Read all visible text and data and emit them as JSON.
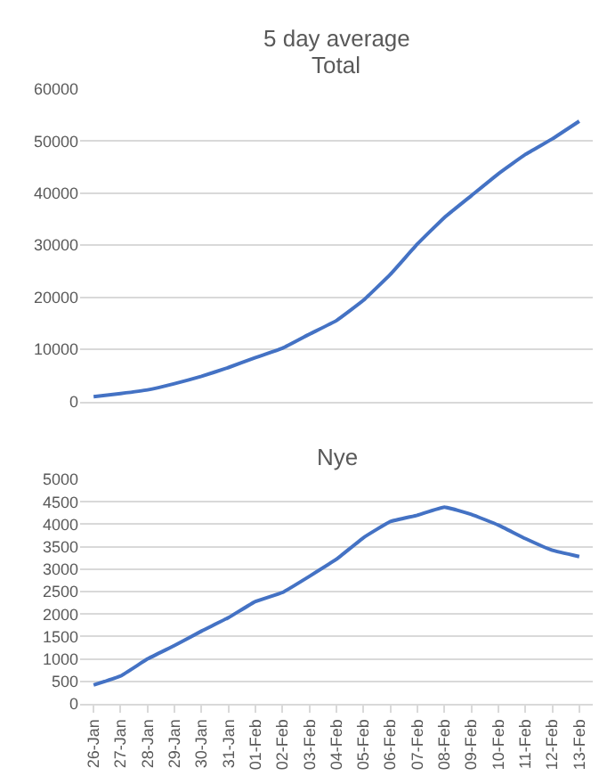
{
  "chart_data": [
    {
      "type": "line",
      "title": "5 day average",
      "subtitle": "Total",
      "categories": [
        null,
        null,
        null,
        null,
        null,
        null,
        null,
        null,
        null,
        null,
        null,
        null,
        null,
        null,
        null,
        null,
        null,
        null,
        null
      ],
      "series": [
        {
          "color": "#4472c4",
          "values": [
            900,
            1500,
            2200,
            3400,
            4800,
            6500,
            8400,
            10200,
            12900,
            15500,
            19400,
            24400,
            30200,
            35300,
            39500,
            43700,
            47400,
            50400,
            53800
          ]
        }
      ],
      "ylim": [
        0,
        60000
      ],
      "yticks": [
        0,
        10000,
        20000,
        30000,
        40000,
        50000,
        60000
      ],
      "grid": "y",
      "tick_labels": "y"
    },
    {
      "type": "line",
      "title": "Nye",
      "categories": [
        "26-Jan",
        "27-Jan",
        "28-Jan",
        "29-Jan",
        "30-Jan",
        "31-Jan",
        "01-Feb",
        "02-Feb",
        "03-Feb",
        "04-Feb",
        "05-Feb",
        "06-Feb",
        "07-Feb",
        "08-Feb",
        "09-Feb",
        "10-Feb",
        "11-Feb",
        "12-Feb",
        "13-Feb"
      ],
      "series": [
        {
          "color": "#4472c4",
          "values": [
            420,
            620,
            1000,
            1300,
            1620,
            1920,
            2280,
            2480,
            2840,
            3220,
            3700,
            4060,
            4200,
            4380,
            4220,
            3980,
            3680,
            3420,
            3280
          ]
        }
      ],
      "ylim": [
        0,
        5000
      ],
      "yticks": [
        0,
        500,
        1000,
        1500,
        2000,
        2500,
        3000,
        3500,
        4000,
        4500,
        5000
      ],
      "grid": "y"
    }
  ]
}
